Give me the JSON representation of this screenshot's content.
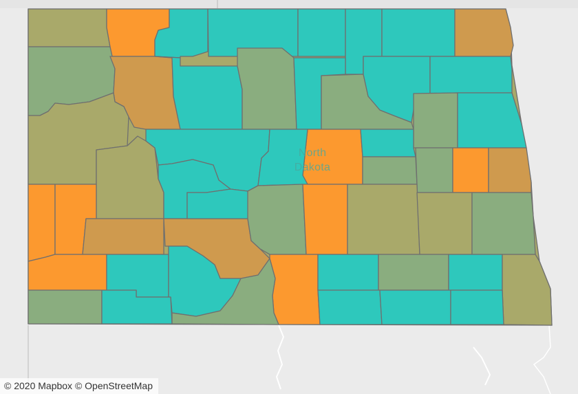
{
  "map": {
    "state_label_line1": "North",
    "state_label_line2": "Dakota",
    "attribution_mapbox": "© 2020 Mapbox",
    "attribution_osm": "© OpenStreetMap"
  },
  "colors": {
    "teal": "#2ec8bc",
    "orange": "#fc992f",
    "olive": "#a9a96a",
    "olive_green": "#8aad7f",
    "tan": "#cf9a4e",
    "border": "#6f6f6f",
    "land": "#ebebeb"
  },
  "counties": [
    {
      "id": "c1",
      "color": "olive"
    },
    {
      "id": "c2",
      "color": "orange"
    },
    {
      "id": "c3",
      "color": "teal"
    },
    {
      "id": "c4",
      "color": "teal"
    },
    {
      "id": "c5",
      "color": "teal"
    },
    {
      "id": "c6",
      "color": "teal"
    },
    {
      "id": "c7",
      "color": "teal"
    },
    {
      "id": "c8",
      "color": "tan"
    },
    {
      "id": "c9",
      "color": "olive_green"
    },
    {
      "id": "c10",
      "color": "tan"
    },
    {
      "id": "c11",
      "color": "teal"
    },
    {
      "id": "c12",
      "color": "olive_green"
    },
    {
      "id": "c13",
      "color": "teal"
    },
    {
      "id": "c14",
      "color": "olive_green"
    },
    {
      "id": "c15",
      "color": "teal"
    },
    {
      "id": "c16",
      "color": "teal"
    },
    {
      "id": "c17",
      "color": "olive"
    },
    {
      "id": "c18",
      "color": "olive"
    },
    {
      "id": "c19",
      "color": "olive_green"
    },
    {
      "id": "c20",
      "color": "teal"
    },
    {
      "id": "c21",
      "color": "teal"
    },
    {
      "id": "c22",
      "color": "teal"
    },
    {
      "id": "c23",
      "color": "orange"
    },
    {
      "id": "c24",
      "color": "teal"
    },
    {
      "id": "c25",
      "color": "teal"
    },
    {
      "id": "c26",
      "color": "olive_green"
    },
    {
      "id": "c27",
      "color": "olive_green"
    },
    {
      "id": "c28",
      "color": "orange"
    },
    {
      "id": "c29",
      "color": "tan"
    },
    {
      "id": "c30",
      "color": "orange"
    },
    {
      "id": "c31",
      "color": "orange"
    },
    {
      "id": "c32",
      "color": "tan"
    },
    {
      "id": "c33",
      "color": "tan"
    },
    {
      "id": "c34",
      "color": "teal"
    },
    {
      "id": "c35",
      "color": "olive_green"
    },
    {
      "id": "c36",
      "color": "orange"
    },
    {
      "id": "c37",
      "color": "olive"
    },
    {
      "id": "c38",
      "color": "olive"
    },
    {
      "id": "c39",
      "color": "olive_green"
    },
    {
      "id": "c40",
      "color": "orange"
    },
    {
      "id": "c41",
      "color": "teal"
    },
    {
      "id": "c42",
      "color": "teal"
    },
    {
      "id": "c43",
      "color": "orange"
    },
    {
      "id": "c44",
      "color": "teal"
    },
    {
      "id": "c45",
      "color": "olive_green"
    },
    {
      "id": "c46",
      "color": "teal"
    },
    {
      "id": "c47",
      "color": "olive"
    },
    {
      "id": "c48",
      "color": "olive_green"
    },
    {
      "id": "c49",
      "color": "teal"
    },
    {
      "id": "c50",
      "color": "teal"
    },
    {
      "id": "c51",
      "color": "olive_green"
    },
    {
      "id": "c52",
      "color": "teal"
    },
    {
      "id": "c53",
      "color": "teal"
    }
  ]
}
